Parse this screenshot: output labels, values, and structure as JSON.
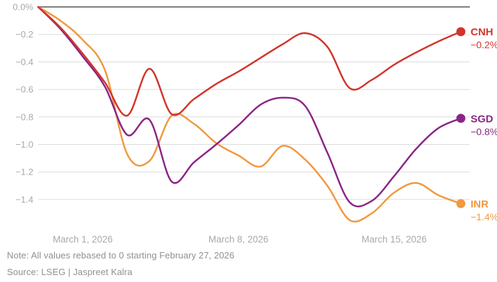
{
  "chart_data": {
    "type": "line",
    "title": "",
    "note": "Note: All values rebased to 0 starting February 27, 2026",
    "source": "Source: LSEG | Jaspreet Kalra",
    "x_unit": "days since February 27, 2026",
    "x_range": [
      0,
      19
    ],
    "ylim": [
      -1.62,
      0.02
    ],
    "grid": true,
    "legend_position": "right-of-line-ends",
    "y_ticks": [
      {
        "value": 0.0,
        "label": "0.0%"
      },
      {
        "value": -0.2,
        "label": "−0.2"
      },
      {
        "value": -0.4,
        "label": "−0.4"
      },
      {
        "value": -0.6,
        "label": "−0.6"
      },
      {
        "value": -0.8,
        "label": "−0.8"
      },
      {
        "value": -1.0,
        "label": "−1.0"
      },
      {
        "value": -1.2,
        "label": "−1.2"
      },
      {
        "value": -1.4,
        "label": "−1.4"
      }
    ],
    "x_ticks": [
      {
        "day": 2,
        "label": "March 1, 2026"
      },
      {
        "day": 9,
        "label": "March 8, 2026"
      },
      {
        "day": 16,
        "label": "March 15, 2026"
      }
    ],
    "series": [
      {
        "name": "INR",
        "color": "#f0993f",
        "end_label": "INR",
        "end_value_label": "−1.4%",
        "x": [
          0,
          1,
          2,
          3,
          4,
          5,
          6,
          7,
          8,
          9,
          10,
          11,
          12,
          13,
          14,
          15,
          16,
          17,
          18,
          19
        ],
        "values": [
          0,
          -0.1,
          -0.24,
          -0.46,
          -1.07,
          -1.12,
          -0.79,
          -0.85,
          -0.99,
          -1.08,
          -1.16,
          -1.01,
          -1.11,
          -1.3,
          -1.55,
          -1.5,
          -1.35,
          -1.28,
          -1.37,
          -1.43
        ]
      },
      {
        "name": "SGD",
        "color": "#8b2585",
        "end_label": "SGD",
        "end_value_label": "−0.8%",
        "x": [
          0,
          1,
          2,
          3,
          4,
          5,
          6,
          7,
          8,
          9,
          10,
          11,
          12,
          13,
          14,
          15,
          16,
          17,
          18,
          19
        ],
        "values": [
          0,
          -0.16,
          -0.36,
          -0.58,
          -0.93,
          -0.82,
          -1.27,
          -1.13,
          -1.0,
          -0.86,
          -0.71,
          -0.66,
          -0.72,
          -1.06,
          -1.42,
          -1.41,
          -1.23,
          -1.03,
          -0.88,
          -0.81
        ]
      },
      {
        "name": "CNH",
        "color": "#d2342c",
        "end_label": "CNH",
        "end_value_label": "−0.2%",
        "x": [
          0,
          1,
          2,
          3,
          4,
          5,
          6,
          7,
          8,
          9,
          10,
          11,
          12,
          13,
          14,
          15,
          16,
          17,
          18,
          19
        ],
        "values": [
          0,
          -0.15,
          -0.34,
          -0.55,
          -0.79,
          -0.45,
          -0.78,
          -0.67,
          -0.56,
          -0.47,
          -0.37,
          -0.27,
          -0.19,
          -0.29,
          -0.59,
          -0.53,
          -0.42,
          -0.33,
          -0.25,
          -0.18
        ]
      }
    ],
    "colors": {
      "gridline": "#dcdcdc",
      "zero_line": "#7e7e7e",
      "tick_label": "#a9a9a9",
      "note_text": "#8f8f8f",
      "background": "#ffffff"
    }
  }
}
